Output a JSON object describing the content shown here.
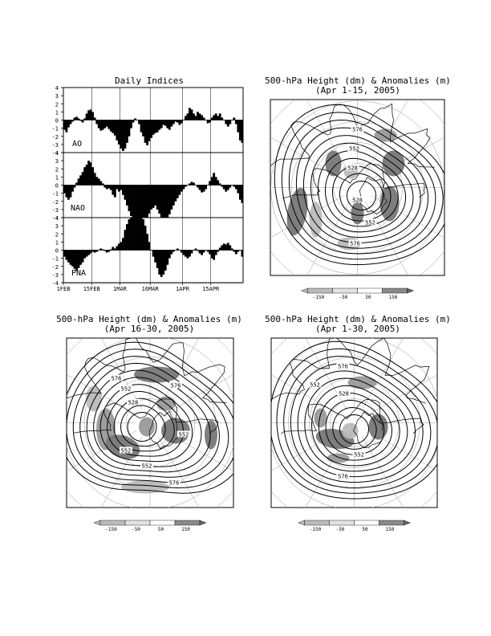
{
  "chart_data": [
    {
      "type": "bar",
      "title": "Daily Indices",
      "xlabel": "",
      "ylabel": "",
      "ylim": [
        -4,
        4
      ],
      "yticks": [
        -4,
        -3,
        -2,
        -1,
        0,
        1,
        2,
        3,
        4
      ],
      "x_tick_labels": [
        "1FEB",
        "15FEB",
        "1MAR",
        "16MAR",
        "1APR",
        "15APR"
      ],
      "x_tick_days": [
        0,
        14,
        28,
        43,
        59,
        73
      ],
      "num_days": 89,
      "series": [
        {
          "name": "AO",
          "values": [
            -1.2,
            -1.5,
            -0.9,
            -0.5,
            -0.2,
            0.3,
            0.4,
            0.2,
            -0.1,
            -0.3,
            0.2,
            0.8,
            1.2,
            1.3,
            1.0,
            0.3,
            -0.5,
            -1.0,
            -1.3,
            -1.2,
            -1.0,
            -0.8,
            -1.1,
            -1.4,
            -1.6,
            -1.9,
            -2.5,
            -3.0,
            -3.5,
            -3.8,
            -3.5,
            -2.8,
            -2.0,
            -1.0,
            -0.3,
            0.2,
            0.0,
            -0.5,
            -1.5,
            -2.0,
            -2.8,
            -3.1,
            -2.6,
            -2.2,
            -1.8,
            -1.6,
            -1.5,
            -1.2,
            -1.0,
            -0.6,
            -0.7,
            -1.0,
            -1.2,
            -0.8,
            -0.5,
            -0.2,
            -0.3,
            -0.6,
            -0.4,
            0.0,
            0.5,
            0.8,
            1.5,
            1.3,
            0.8,
            0.5,
            1.0,
            0.8,
            0.6,
            0.3,
            0.0,
            -0.4,
            -0.3,
            0.3,
            0.6,
            0.8,
            0.5,
            0.8,
            0.3,
            0.0,
            -0.5,
            -0.8,
            -0.5,
            0.0,
            0.3,
            -0.5,
            -1.5,
            -2.5,
            -2.8
          ]
        },
        {
          "name": "NAO",
          "values": [
            -1.0,
            -1.5,
            -1.8,
            -1.5,
            -0.8,
            -0.3,
            0.3,
            0.8,
            1.2,
            1.6,
            2.2,
            2.5,
            3.0,
            2.8,
            2.2,
            1.5,
            1.0,
            0.8,
            0.5,
            0.2,
            -0.3,
            -0.5,
            -0.4,
            -0.6,
            -1.2,
            -1.5,
            -0.5,
            -0.8,
            -0.6,
            -1.2,
            -1.8,
            -2.5,
            -3.2,
            -3.8,
            -4.0,
            -4.0,
            -4.0,
            -4.0,
            -4.0,
            -4.0,
            -4.0,
            -4.0,
            -3.5,
            -3.0,
            -2.8,
            -2.5,
            -3.0,
            -3.5,
            -4.0,
            -4.0,
            -4.0,
            -4.0,
            -3.6,
            -3.0,
            -2.5,
            -2.0,
            -1.6,
            -1.2,
            -0.8,
            -0.5,
            -0.2,
            0.0,
            0.2,
            0.4,
            0.3,
            0.0,
            -0.3,
            -0.6,
            -0.9,
            -0.8,
            -0.5,
            0.0,
            0.5,
            1.0,
            1.5,
            1.0,
            0.6,
            0.2,
            -0.2,
            -0.5,
            -0.8,
            -0.6,
            -0.3,
            0.0,
            -0.2,
            -0.5,
            -1.0,
            -1.8,
            -2.2
          ]
        },
        {
          "name": "PNA",
          "values": [
            -0.8,
            -1.2,
            -1.5,
            -1.8,
            -2.0,
            -2.3,
            -2.5,
            -2.2,
            -1.8,
            -1.5,
            -1.0,
            -0.8,
            -0.6,
            -0.4,
            -0.2,
            -0.3,
            -0.2,
            0.0,
            0.2,
            0.1,
            -0.1,
            -0.3,
            -0.2,
            0.1,
            0.4,
            0.2,
            0.5,
            0.8,
            1.0,
            1.5,
            2.5,
            3.2,
            3.8,
            4.0,
            4.0,
            4.0,
            4.0,
            4.0,
            4.0,
            3.8,
            3.0,
            2.0,
            1.0,
            0.0,
            -0.8,
            -1.5,
            -2.2,
            -3.0,
            -3.3,
            -3.0,
            -2.5,
            -1.8,
            -1.0,
            -0.5,
            -0.2,
            0.0,
            0.2,
            0.0,
            -0.3,
            -0.6,
            -0.8,
            -1.0,
            -0.8,
            -0.4,
            0.0,
            0.2,
            -0.1,
            -0.4,
            -0.6,
            -0.3,
            0.0,
            -0.2,
            -0.5,
            -1.0,
            -1.2,
            -0.6,
            -0.2,
            0.3,
            0.6,
            0.8,
            0.7,
            0.9,
            0.6,
            0.2,
            -0.2,
            -0.5,
            -0.2,
            0.0,
            -0.8
          ]
        }
      ]
    },
    {
      "type": "map",
      "title": "500-hPa Height (dm) & Anomalies (m)",
      "subtitle": "(Apr 1-15, 2005)",
      "contour_labels": [
        "576",
        "552",
        "528",
        "528",
        "552",
        "576"
      ],
      "colorbar": [
        "-150",
        "-50",
        "50",
        "150"
      ]
    },
    {
      "type": "map",
      "title": "500-hPa Height (dm) & Anomalies (m)",
      "subtitle": "(Apr 16-30, 2005)",
      "contour_labels": [
        "576",
        "576",
        "552",
        "528",
        "552",
        "552",
        "552",
        "576"
      ],
      "colorbar": [
        "-150",
        "-50",
        "50",
        "150"
      ]
    },
    {
      "type": "map",
      "title": "500-hPa Height (dm) & Anomalies (m)",
      "subtitle": "(Apr 1-30, 2005)",
      "contour_labels": [
        "576",
        "552",
        "528",
        "552",
        "576"
      ],
      "colorbar": [
        "-150",
        "-50",
        "50",
        "150"
      ]
    }
  ]
}
